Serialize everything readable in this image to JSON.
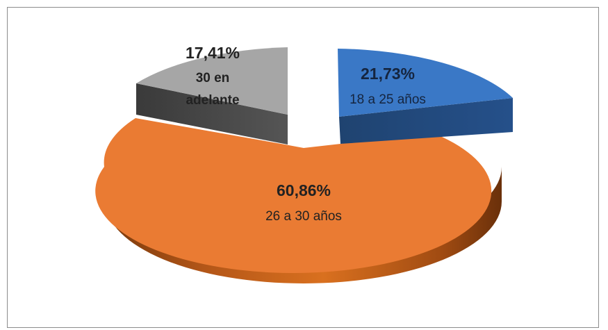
{
  "chart_data": {
    "type": "pie",
    "style": "3d-exploded",
    "slices": [
      {
        "label": "18 a 25 años",
        "value": 21.73,
        "value_label": "21,73%",
        "color": "#3a78c6"
      },
      {
        "label": "26 a 30 años",
        "value": 60.86,
        "value_label": "60,86%",
        "color": "#ea7b33"
      },
      {
        "label": "30 en adelante",
        "value": 17.41,
        "value_label": "17,41%",
        "color": "#a6a6a6"
      }
    ],
    "legend": "none"
  }
}
